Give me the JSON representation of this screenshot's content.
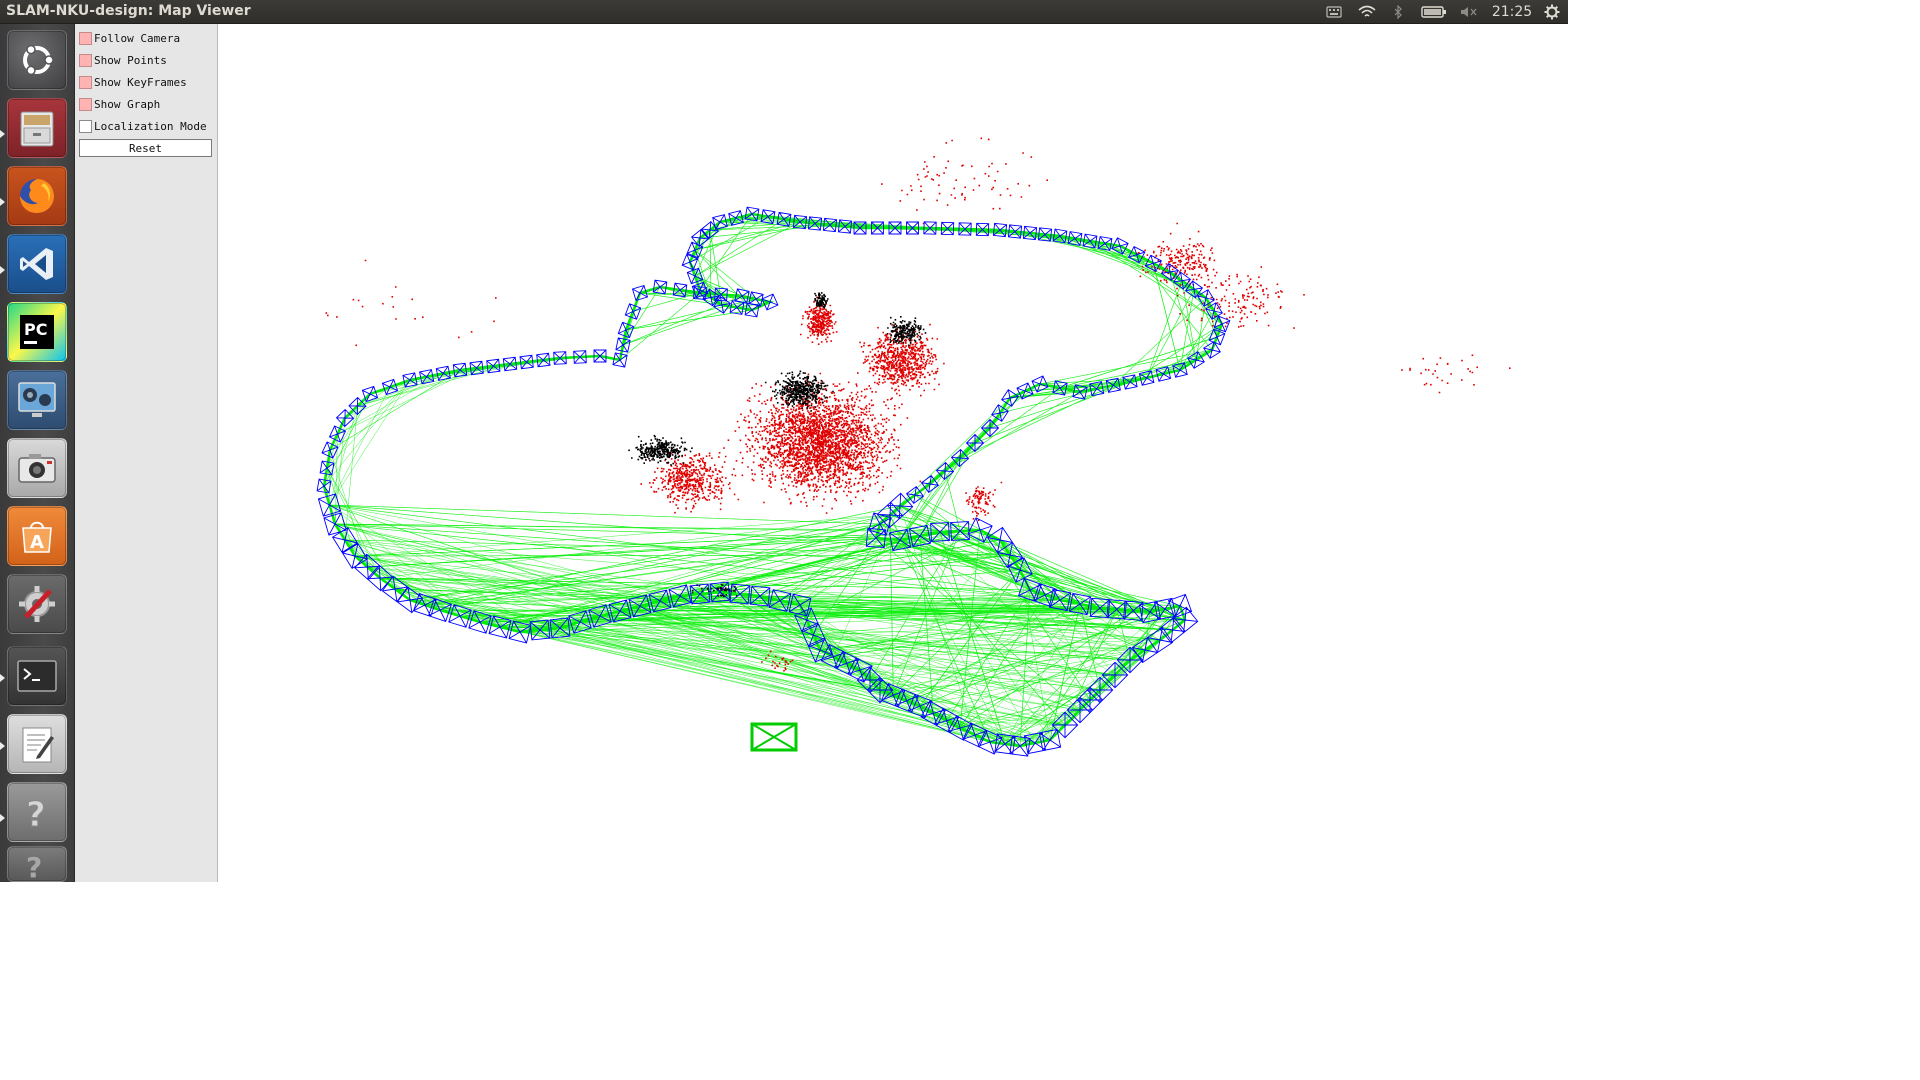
{
  "window": {
    "title": "SLAM-NKU-design: Map Viewer"
  },
  "top_bar": {
    "clock": "21:25",
    "tray_icons": [
      "keyboard-icon",
      "wifi-icon",
      "bluetooth-icon",
      "battery-icon",
      "volume-muted-icon",
      "settings-gear-icon"
    ]
  },
  "launcher": {
    "items": [
      {
        "name": "ubuntu-dash-icon",
        "running": false
      },
      {
        "name": "files-icon",
        "running": true
      },
      {
        "name": "firefox-icon",
        "running": true
      },
      {
        "name": "vscode-icon",
        "running": true
      },
      {
        "name": "pycharm-icon",
        "running": false
      },
      {
        "name": "video-player-icon",
        "running": false
      },
      {
        "name": "camera-icon",
        "running": false
      },
      {
        "name": "software-center-icon",
        "running": false
      },
      {
        "name": "system-settings-icon",
        "running": false
      },
      {
        "name": "terminal-icon",
        "running": true
      },
      {
        "name": "text-editor-icon",
        "running": true
      },
      {
        "name": "help-icon",
        "running": true
      }
    ]
  },
  "controls": {
    "follow_camera": {
      "label": "Follow Camera",
      "checked": true
    },
    "show_points": {
      "label": "Show Points",
      "checked": true
    },
    "show_keyframes": {
      "label": "Show KeyFrames",
      "checked": true
    },
    "show_graph": {
      "label": "Show Graph",
      "checked": true
    },
    "localization_mode": {
      "label": "Localization Mode",
      "checked": false
    },
    "reset_label": "Reset"
  },
  "colors": {
    "map_points": "#e00000",
    "reference_points": "#000000",
    "keyframes": "#0000ff",
    "covisibility_graph": "#00ee00",
    "current_camera": "#00cc00",
    "checkbox_checked": "#ffb3b3"
  }
}
